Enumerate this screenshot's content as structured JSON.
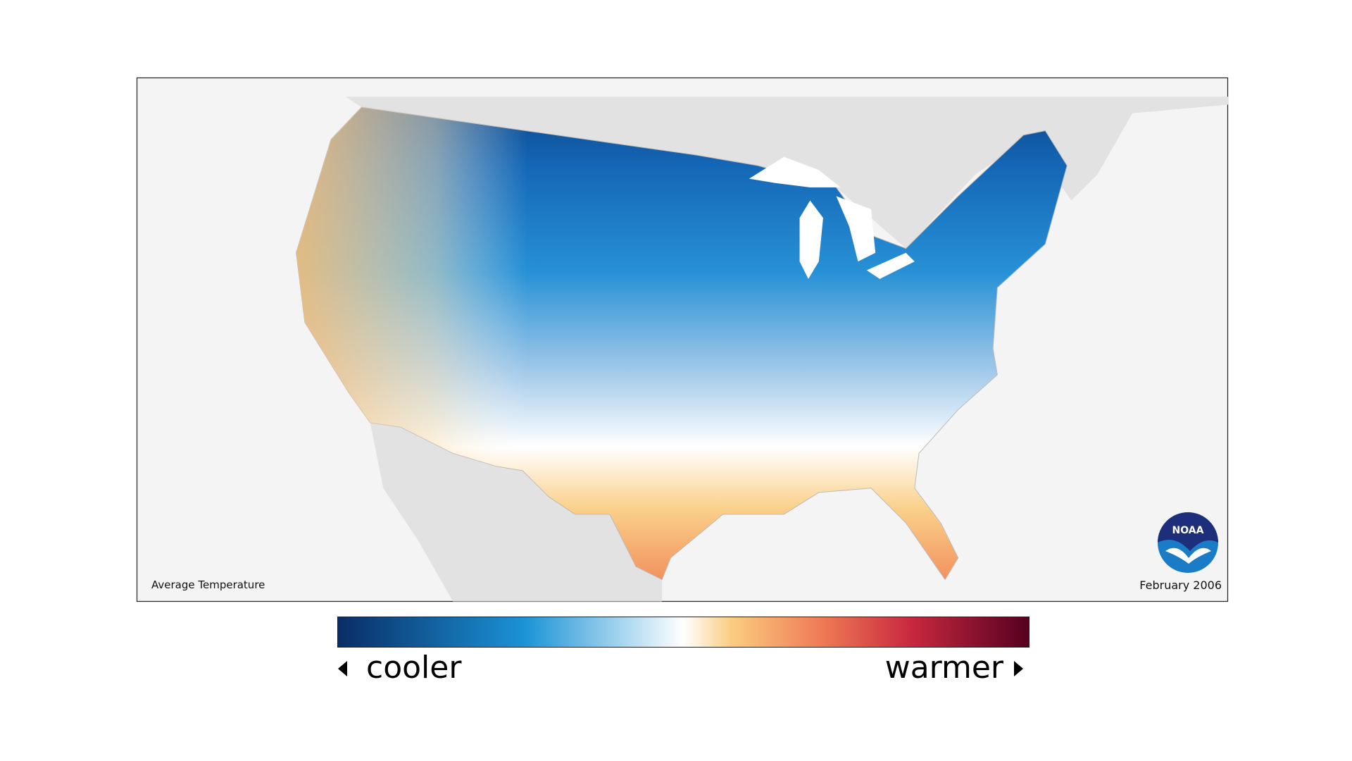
{
  "map": {
    "title": "Average Temperature",
    "date": "February 2006"
  },
  "legend": {
    "low_label": "cooler",
    "high_label": "warmer"
  },
  "logo": {
    "text": "NOAA"
  }
}
